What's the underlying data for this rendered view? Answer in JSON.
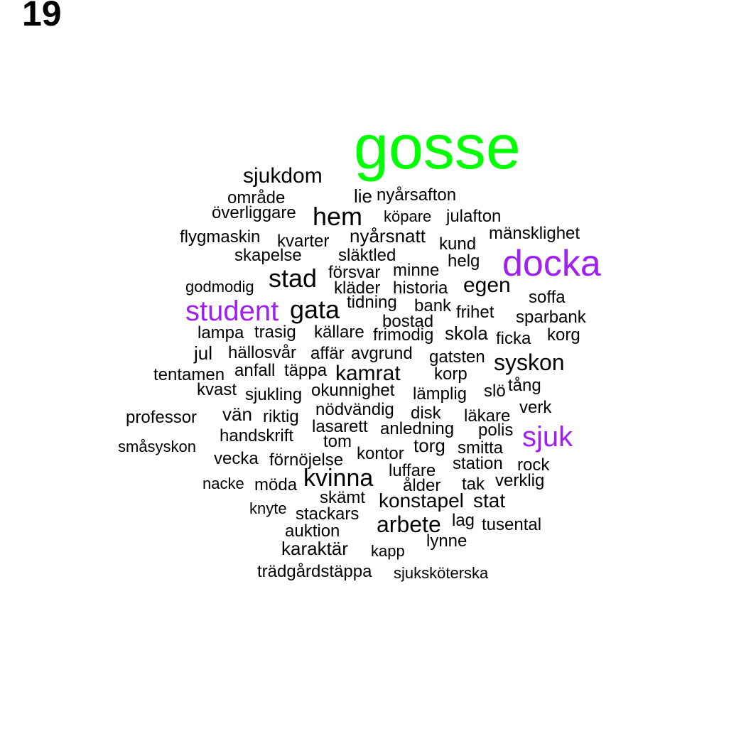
{
  "page_number": "19",
  "colors": {
    "default": "#000000",
    "highlight": "#a020f0",
    "top": "#00ff00"
  },
  "words": [
    {
      "text": "gosse",
      "size": 88,
      "color": "top"
    },
    {
      "text": "docka",
      "size": 52,
      "color": "highlight"
    },
    {
      "text": "student",
      "size": 40,
      "color": "highlight"
    },
    {
      "text": "sjuk",
      "size": 40,
      "color": "highlight"
    },
    {
      "text": "sjukdom",
      "size": 30
    },
    {
      "text": "lie",
      "size": 26
    },
    {
      "text": "nyårsafton",
      "size": 24
    },
    {
      "text": "område",
      "size": 24
    },
    {
      "text": "överliggare",
      "size": 24
    },
    {
      "text": "hem",
      "size": 36
    },
    {
      "text": "köpare",
      "size": 22
    },
    {
      "text": "julafton",
      "size": 24
    },
    {
      "text": "mänsklighet",
      "size": 24
    },
    {
      "text": "flygmaskin",
      "size": 24
    },
    {
      "text": "kvarter",
      "size": 24
    },
    {
      "text": "nyårsnatt",
      "size": 26
    },
    {
      "text": "kund",
      "size": 24
    },
    {
      "text": "skapelse",
      "size": 24
    },
    {
      "text": "släktled",
      "size": 24
    },
    {
      "text": "helg",
      "size": 24
    },
    {
      "text": "minne",
      "size": 24
    },
    {
      "text": "stad",
      "size": 36
    },
    {
      "text": "försvar",
      "size": 24
    },
    {
      "text": "godmodig",
      "size": 22
    },
    {
      "text": "kläder",
      "size": 24
    },
    {
      "text": "historia",
      "size": 24
    },
    {
      "text": "egen",
      "size": 30
    },
    {
      "text": "soffa",
      "size": 24
    },
    {
      "text": "gata",
      "size": 36
    },
    {
      "text": "tidning",
      "size": 24
    },
    {
      "text": "bank",
      "size": 24
    },
    {
      "text": "frihet",
      "size": 24
    },
    {
      "text": "sparbank",
      "size": 24
    },
    {
      "text": "bostad",
      "size": 24
    },
    {
      "text": "lampa",
      "size": 24
    },
    {
      "text": "trasig",
      "size": 24
    },
    {
      "text": "källare",
      "size": 24
    },
    {
      "text": "frimodig",
      "size": 24
    },
    {
      "text": "skola",
      "size": 26
    },
    {
      "text": "ficka",
      "size": 24
    },
    {
      "text": "korg",
      "size": 24
    },
    {
      "text": "jul",
      "size": 26
    },
    {
      "text": "hällosvår",
      "size": 24
    },
    {
      "text": "affär",
      "size": 24
    },
    {
      "text": "avgrund",
      "size": 24
    },
    {
      "text": "gatsten",
      "size": 24
    },
    {
      "text": "syskon",
      "size": 32
    },
    {
      "text": "tentamen",
      "size": 24
    },
    {
      "text": "anfall",
      "size": 24
    },
    {
      "text": "täppa",
      "size": 24
    },
    {
      "text": "kamrat",
      "size": 30
    },
    {
      "text": "korp",
      "size": 24
    },
    {
      "text": "kvast",
      "size": 24
    },
    {
      "text": "sjukling",
      "size": 24
    },
    {
      "text": "okunnighet",
      "size": 24
    },
    {
      "text": "lämplig",
      "size": 24
    },
    {
      "text": "slö",
      "size": 24
    },
    {
      "text": "tång",
      "size": 24
    },
    {
      "text": "verk",
      "size": 24
    },
    {
      "text": "professor",
      "size": 24
    },
    {
      "text": "vän",
      "size": 26
    },
    {
      "text": "riktig",
      "size": 24
    },
    {
      "text": "nödvändig",
      "size": 24
    },
    {
      "text": "disk",
      "size": 24
    },
    {
      "text": "läkare",
      "size": 24
    },
    {
      "text": "lasarett",
      "size": 24
    },
    {
      "text": "anledning",
      "size": 24
    },
    {
      "text": "polis",
      "size": 24
    },
    {
      "text": "handskrift",
      "size": 24
    },
    {
      "text": "tom",
      "size": 24
    },
    {
      "text": "småsyskon",
      "size": 22
    },
    {
      "text": "torg",
      "size": 26
    },
    {
      "text": "smitta",
      "size": 24
    },
    {
      "text": "vecka",
      "size": 24
    },
    {
      "text": "förnöjelse",
      "size": 24
    },
    {
      "text": "kontor",
      "size": 24
    },
    {
      "text": "station",
      "size": 24
    },
    {
      "text": "luffare",
      "size": 24
    },
    {
      "text": "rock",
      "size": 24
    },
    {
      "text": "kvinna",
      "size": 34
    },
    {
      "text": "nacke",
      "size": 22
    },
    {
      "text": "möda",
      "size": 24
    },
    {
      "text": "ålder",
      "size": 24
    },
    {
      "text": "tak",
      "size": 24
    },
    {
      "text": "verklig",
      "size": 24
    },
    {
      "text": "skämt",
      "size": 24
    },
    {
      "text": "konstapel",
      "size": 28
    },
    {
      "text": "stat",
      "size": 28
    },
    {
      "text": "knyte",
      "size": 22
    },
    {
      "text": "stackars",
      "size": 24
    },
    {
      "text": "arbete",
      "size": 32
    },
    {
      "text": "lag",
      "size": 24
    },
    {
      "text": "tusental",
      "size": 24
    },
    {
      "text": "auktion",
      "size": 24
    },
    {
      "text": "lynne",
      "size": 24
    },
    {
      "text": "karaktär",
      "size": 26
    },
    {
      "text": "kapp",
      "size": 22
    },
    {
      "text": "trädgårdstäppa",
      "size": 24
    },
    {
      "text": "sjuksköterska",
      "size": 22
    }
  ]
}
